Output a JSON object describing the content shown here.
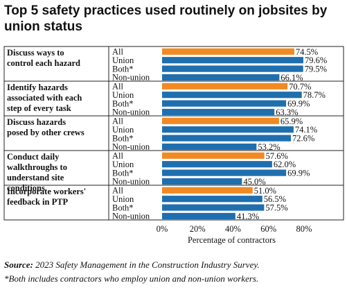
{
  "title": "Top 5 safety practices used routinely on jobsites by union status",
  "source_label": "Source:",
  "source_text": "2023 Safety Management in the Construction Industry Survey.",
  "footnote": "*Both includes contractors who employ union and non-union workers.",
  "colors": {
    "highlight": "#F08A24",
    "bar": "#1F6FAE",
    "text": "#111111"
  },
  "chart_data": {
    "type": "bar",
    "orientation": "horizontal",
    "xlabel": "Percentage of contractors",
    "xlim": [
      0,
      80
    ],
    "xticks": [
      "0%",
      "20%",
      "40%",
      "60%",
      "80%"
    ],
    "series_labels": [
      "All",
      "Union",
      "Both*",
      "Non-union"
    ],
    "groups": [
      {
        "label": "Discuss ways to control each hazard",
        "values": [
          74.5,
          79.6,
          79.5,
          66.1
        ],
        "value_labels": [
          "74.5%",
          "79.6%",
          "79.5%",
          "66.1%"
        ]
      },
      {
        "label": "Identify hazards associated with each step of every task",
        "values": [
          70.7,
          78.7,
          69.9,
          63.3
        ],
        "value_labels": [
          "70.7%",
          "78.7%",
          "69.9%",
          "63.3%"
        ]
      },
      {
        "label": "Discuss hazards posed by other crews",
        "values": [
          65.9,
          74.1,
          72.6,
          53.2
        ],
        "value_labels": [
          "65.9%",
          "74.1%",
          "72.6%",
          "53.2%"
        ]
      },
      {
        "label": "Conduct daily walkthroughs to understand site conditions",
        "values": [
          57.6,
          62.0,
          69.9,
          45.0
        ],
        "value_labels": [
          "57.6%",
          "62.0%",
          "69.9%",
          "45.0%"
        ]
      },
      {
        "label": "Incorporate workers' feedback in PTP",
        "values": [
          51.0,
          56.5,
          57.5,
          41.3
        ],
        "value_labels": [
          "51.0%",
          "56.5%",
          "57.5%",
          "41.3%"
        ]
      }
    ]
  }
}
